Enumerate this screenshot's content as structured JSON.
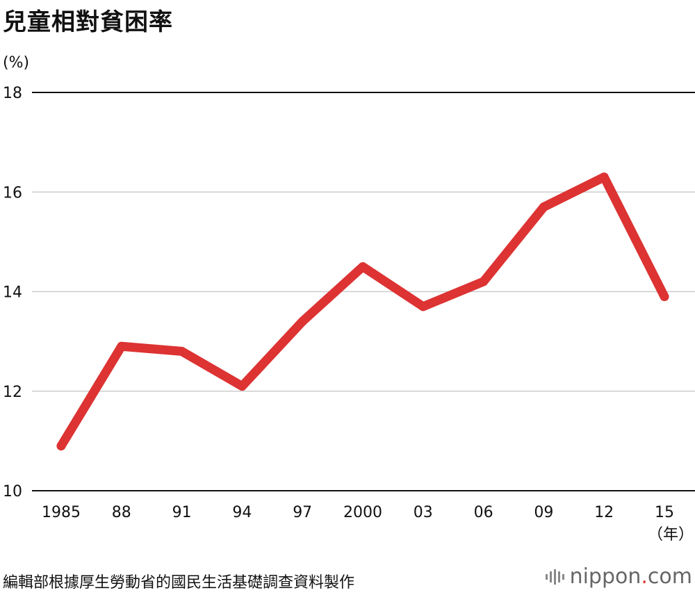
{
  "title": "兒童相對貧困率",
  "unit_label": "(%)",
  "x_unit_label": "（年）",
  "source": "編輯部根據厚生勞動省的國民生活基礎調查資料製作",
  "brand": {
    "name": "nippon",
    "dot": ".",
    "tld": "com",
    "icon": "sound-bars-icon"
  },
  "colors": {
    "line": "#dd3333",
    "grid": "#cccccc",
    "axis": "#111111"
  },
  "chart_data": {
    "type": "line",
    "title": "兒童相對貧困率",
    "ylabel": "(%)",
    "xlabel": "（年）",
    "ylim": [
      10,
      18
    ],
    "yticks": [
      10,
      12,
      14,
      16,
      18
    ],
    "grid": true,
    "categories": [
      "1985",
      "88",
      "91",
      "94",
      "97",
      "2000",
      "03",
      "06",
      "09",
      "12",
      "15"
    ],
    "series": [
      {
        "values": [
          10.9,
          12.9,
          12.8,
          12.1,
          13.4,
          14.5,
          13.7,
          14.2,
          15.7,
          16.3,
          13.9
        ]
      }
    ]
  }
}
